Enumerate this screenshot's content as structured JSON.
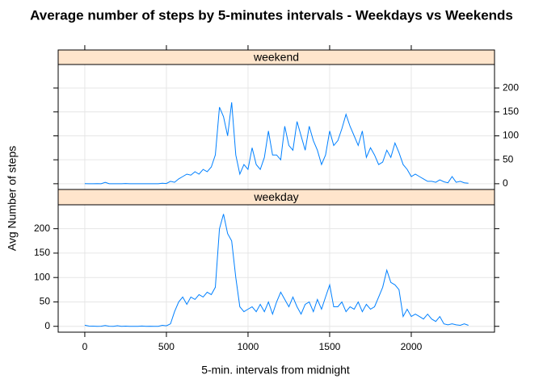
{
  "chart_data": {
    "type": "line",
    "title": "Average number of steps by 5-minutes intervals - Weekdays vs Weekends",
    "x_label": "5-min. intervals from midnight",
    "y_label": "Avg Number of steps",
    "x": [
      0,
      25,
      50,
      75,
      100,
      125,
      150,
      175,
      200,
      225,
      250,
      275,
      300,
      325,
      350,
      375,
      400,
      425,
      450,
      475,
      500,
      525,
      550,
      575,
      600,
      625,
      650,
      675,
      700,
      725,
      750,
      775,
      800,
      825,
      850,
      875,
      900,
      925,
      950,
      975,
      1000,
      1025,
      1050,
      1075,
      1100,
      1125,
      1150,
      1175,
      1200,
      1225,
      1250,
      1275,
      1300,
      1325,
      1350,
      1375,
      1400,
      1425,
      1450,
      1475,
      1500,
      1525,
      1550,
      1575,
      1600,
      1625,
      1650,
      1675,
      1700,
      1725,
      1750,
      1775,
      1800,
      1825,
      1850,
      1875,
      1900,
      1925,
      1950,
      1975,
      2000,
      2025,
      2050,
      2075,
      2100,
      2125,
      2150,
      2175,
      2200,
      2225,
      2250,
      2275,
      2300,
      2325,
      2350
    ],
    "series": [
      {
        "name": "weekend",
        "color": "#0080ff",
        "values": [
          0.2,
          0,
          0,
          0.1,
          0,
          3,
          0,
          0,
          0,
          0,
          0.5,
          0,
          0,
          0,
          0,
          0,
          0,
          0,
          0,
          1,
          0.5,
          5,
          3,
          10,
          15,
          20,
          18,
          25,
          20,
          30,
          25,
          35,
          60,
          160,
          140,
          100,
          170,
          60,
          20,
          40,
          30,
          75,
          40,
          30,
          55,
          110,
          60,
          60,
          50,
          120,
          80,
          70,
          130,
          100,
          70,
          120,
          90,
          70,
          40,
          60,
          110,
          80,
          90,
          115,
          145,
          120,
          100,
          80,
          110,
          55,
          75,
          60,
          40,
          45,
          70,
          55,
          85,
          65,
          40,
          30,
          15,
          20,
          15,
          10,
          5,
          5,
          3,
          8,
          4,
          2,
          15,
          3,
          5,
          2,
          1
        ]
      },
      {
        "name": "weekday",
        "color": "#0080ff",
        "values": [
          2.2,
          0.5,
          0.4,
          0.1,
          0.2,
          1.5,
          0.3,
          0,
          1.2,
          0,
          0.4,
          0.1,
          0,
          0,
          0.5,
          0,
          0.2,
          0.1,
          0,
          2,
          1,
          5,
          30,
          50,
          60,
          45,
          60,
          55,
          65,
          60,
          70,
          65,
          80,
          200,
          230,
          190,
          175,
          100,
          40,
          30,
          35,
          40,
          30,
          45,
          30,
          50,
          25,
          50,
          70,
          55,
          40,
          60,
          40,
          25,
          45,
          50,
          30,
          55,
          35,
          60,
          85,
          40,
          40,
          50,
          30,
          40,
          35,
          50,
          30,
          45,
          35,
          40,
          60,
          80,
          115,
          90,
          85,
          75,
          20,
          35,
          20,
          25,
          20,
          15,
          25,
          15,
          10,
          20,
          5,
          3,
          5,
          3,
          2,
          5,
          2
        ]
      }
    ],
    "xlim": [
      -163,
      2510
    ],
    "ylim": [
      -12,
      249
    ],
    "xticks": [
      0,
      500,
      1000,
      1500,
      2000
    ],
    "yticks": [
      0,
      50,
      100,
      150,
      200
    ],
    "grid": true
  }
}
